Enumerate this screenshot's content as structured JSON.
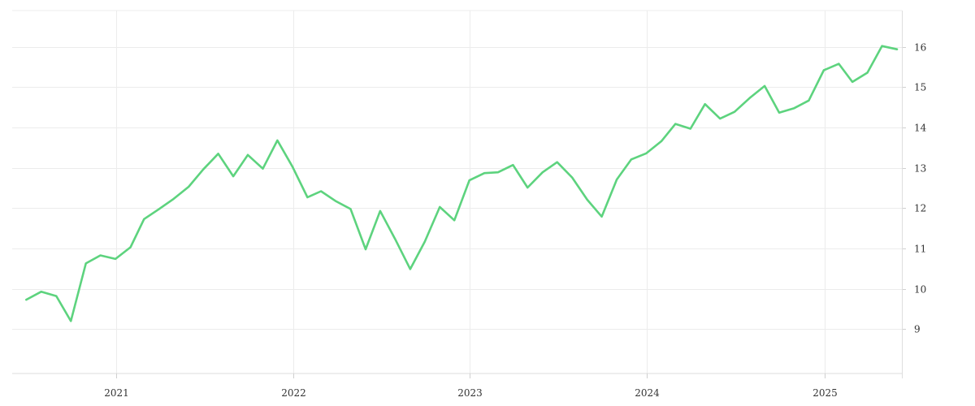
{
  "chart_data": {
    "type": "line",
    "x_axis": {
      "type": "date",
      "range": [
        "2020-06-01",
        "2025-06-10"
      ],
      "ticks": [
        {
          "value": "2021-01-01",
          "label": "2021"
        },
        {
          "value": "2022-01-01",
          "label": "2022"
        },
        {
          "value": "2023-01-01",
          "label": "2023"
        },
        {
          "value": "2024-01-01",
          "label": "2024"
        },
        {
          "value": "2025-01-01",
          "label": "2025"
        }
      ],
      "grid": true
    },
    "y_axis": {
      "position": "right",
      "range": [
        7.9,
        16.9
      ],
      "ticks": [
        {
          "value": 9,
          "label": "9"
        },
        {
          "value": 10,
          "label": "10"
        },
        {
          "value": 11,
          "label": "11"
        },
        {
          "value": 12,
          "label": "12"
        },
        {
          "value": 13,
          "label": "13"
        },
        {
          "value": 14,
          "label": "14"
        },
        {
          "value": 15,
          "label": "15"
        },
        {
          "value": 16,
          "label": "16"
        }
      ],
      "grid": true
    },
    "series": [
      {
        "color": "#5dd37e",
        "x": [
          "2020-06-30",
          "2020-07-31",
          "2020-08-31",
          "2020-09-30",
          "2020-10-31",
          "2020-11-30",
          "2020-12-31",
          "2021-01-31",
          "2021-02-28",
          "2021-03-31",
          "2021-04-30",
          "2021-05-31",
          "2021-06-30",
          "2021-07-31",
          "2021-08-31",
          "2021-09-30",
          "2021-10-31",
          "2021-11-30",
          "2021-12-31",
          "2022-01-31",
          "2022-02-28",
          "2022-03-31",
          "2022-04-30",
          "2022-05-31",
          "2022-06-30",
          "2022-07-31",
          "2022-08-31",
          "2022-09-30",
          "2022-10-31",
          "2022-11-30",
          "2022-12-31",
          "2023-01-31",
          "2023-02-28",
          "2023-03-31",
          "2023-04-30",
          "2023-05-31",
          "2023-06-30",
          "2023-07-31",
          "2023-08-31",
          "2023-09-30",
          "2023-10-31",
          "2023-11-30",
          "2023-12-31",
          "2024-01-31",
          "2024-02-29",
          "2024-03-31",
          "2024-04-30",
          "2024-05-31",
          "2024-06-30",
          "2024-07-31",
          "2024-08-31",
          "2024-09-30",
          "2024-10-31",
          "2024-11-30",
          "2024-12-31",
          "2025-01-31",
          "2025-02-28",
          "2025-03-31",
          "2025-04-30",
          "2025-05-31"
        ],
        "y": [
          9.73,
          9.93,
          9.82,
          9.2,
          10.63,
          10.83,
          10.74,
          11.03,
          11.73,
          11.98,
          12.23,
          12.53,
          12.96,
          13.35,
          12.79,
          13.32,
          12.98,
          13.68,
          13.03,
          12.27,
          12.42,
          12.17,
          11.98,
          10.98,
          11.93,
          11.23,
          10.49,
          11.17,
          12.03,
          11.7,
          12.69,
          12.87,
          12.89,
          13.07,
          12.51,
          12.89,
          13.14,
          12.76,
          12.21,
          11.79,
          12.71,
          13.21,
          13.36,
          13.66,
          14.09,
          13.97,
          14.58,
          14.22,
          14.39,
          14.73,
          15.03,
          14.37,
          14.48,
          14.67,
          15.42,
          15.58,
          15.13,
          15.36,
          16.02,
          15.94
        ]
      }
    ]
  }
}
